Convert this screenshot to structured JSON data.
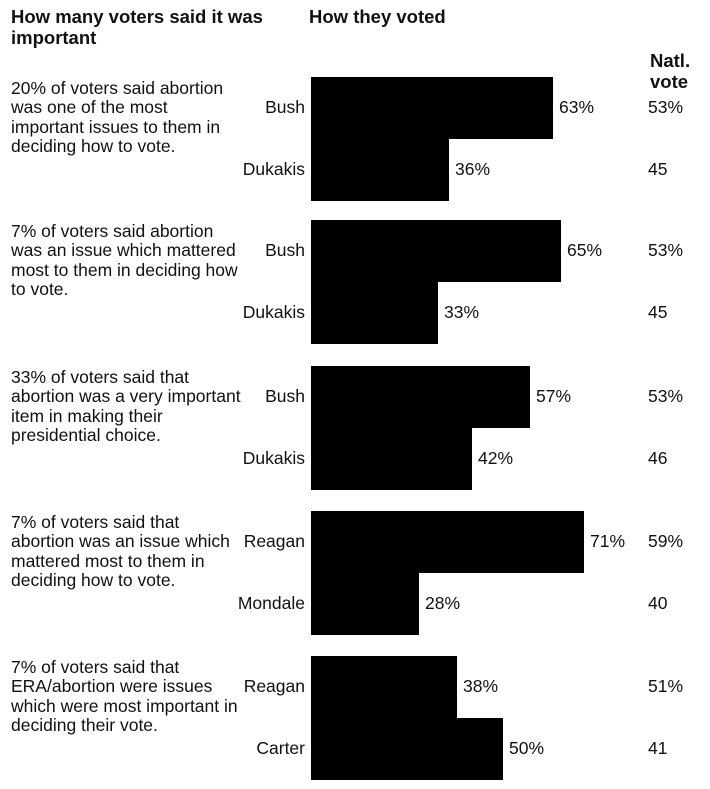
{
  "headers": {
    "left": "How many voters said it was important",
    "middle": "How they voted",
    "natl": "Natl. vote"
  },
  "chart_data": {
    "type": "bar",
    "orientation": "horizontal",
    "groups": [
      {
        "description": "20% of voters said abortion was one of the most important issues to them in deciding how to vote.",
        "rows": [
          {
            "candidate": "Bush",
            "value": 63,
            "label": "63%",
            "natl": "53%"
          },
          {
            "candidate": "Dukakis",
            "value": 36,
            "label": "36%",
            "natl": "45"
          }
        ]
      },
      {
        "description": "7% of voters said abortion was an issue which mattered most to them in deciding how to vote.",
        "rows": [
          {
            "candidate": "Bush",
            "value": 65,
            "label": "65%",
            "natl": "53%"
          },
          {
            "candidate": "Dukakis",
            "value": 33,
            "label": "33%",
            "natl": "45"
          }
        ]
      },
      {
        "description": "33% of voters said that abortion was a very important item in making their presidential choice.",
        "rows": [
          {
            "candidate": "Bush",
            "value": 57,
            "label": "57%",
            "natl": "53%"
          },
          {
            "candidate": "Dukakis",
            "value": 42,
            "label": "42%",
            "natl": "46"
          }
        ]
      },
      {
        "description": "7% of voters said that abortion was an issue which mattered most to them in deciding how to vote.",
        "rows": [
          {
            "candidate": "Reagan",
            "value": 71,
            "label": "71%",
            "natl": "59%"
          },
          {
            "candidate": "Mondale",
            "value": 28,
            "label": "28%",
            "natl": "40"
          }
        ]
      },
      {
        "description": "7% of voters said that ERA/abortion were issues which were most important in deciding their vote.",
        "rows": [
          {
            "candidate": "Reagan",
            "value": 38,
            "label": "38%",
            "natl": "51%"
          },
          {
            "candidate": "Carter",
            "value": 50,
            "label": "50%",
            "natl": "41"
          }
        ]
      }
    ]
  }
}
